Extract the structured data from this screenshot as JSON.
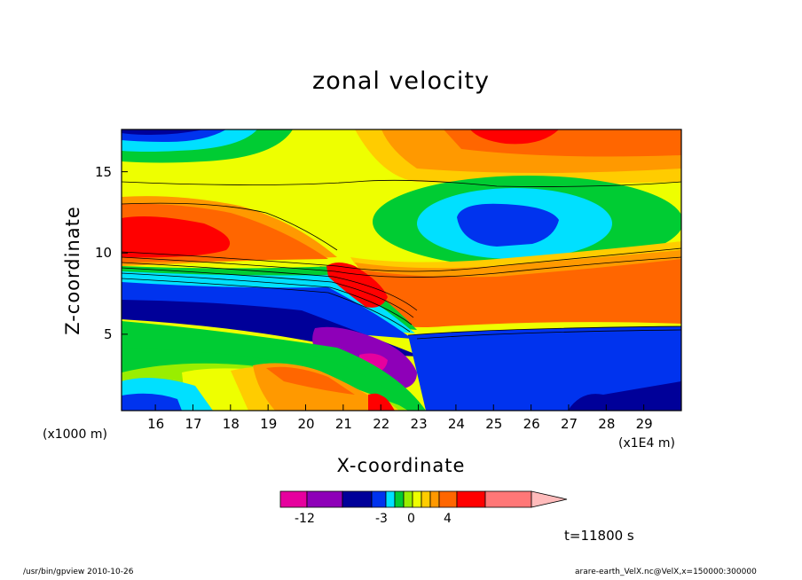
{
  "chart_data": {
    "type": "heatmap",
    "title": "zonal velocity",
    "xlabel": "X-coordinate",
    "ylabel": "Z-coordinate",
    "x_units": "(x1E4 m)",
    "y_units": "(x1000 m)",
    "xlim": [
      15.1,
      30.0
    ],
    "ylim": [
      0.3,
      17.6
    ],
    "x_ticks": [
      "16",
      "17",
      "18",
      "19",
      "20",
      "21",
      "22",
      "23",
      "24",
      "25",
      "26",
      "27",
      "28",
      "29"
    ],
    "y_ticks": [
      "5",
      "10",
      "15"
    ],
    "y_tick_values": [
      5,
      10,
      15
    ],
    "colorbar": {
      "colors": [
        "#e6009e",
        "#8e00b8",
        "#000099",
        "#0033ee",
        "#00e0ff",
        "#00cc33",
        "#99ee00",
        "#eeff00",
        "#ffcc00",
        "#ff9900",
        "#ff6600",
        "#ff0000",
        "#ff7777",
        "#ffbbbb"
      ],
      "tick_labels": [
        "-12",
        "-3",
        "0",
        "4"
      ]
    },
    "time_label": "t=11800 s"
  },
  "footer": {
    "left": "/usr/bin/gpview  2010-10-26",
    "right": "arare-earth_VelX.nc@VelX,x=150000:300000"
  }
}
